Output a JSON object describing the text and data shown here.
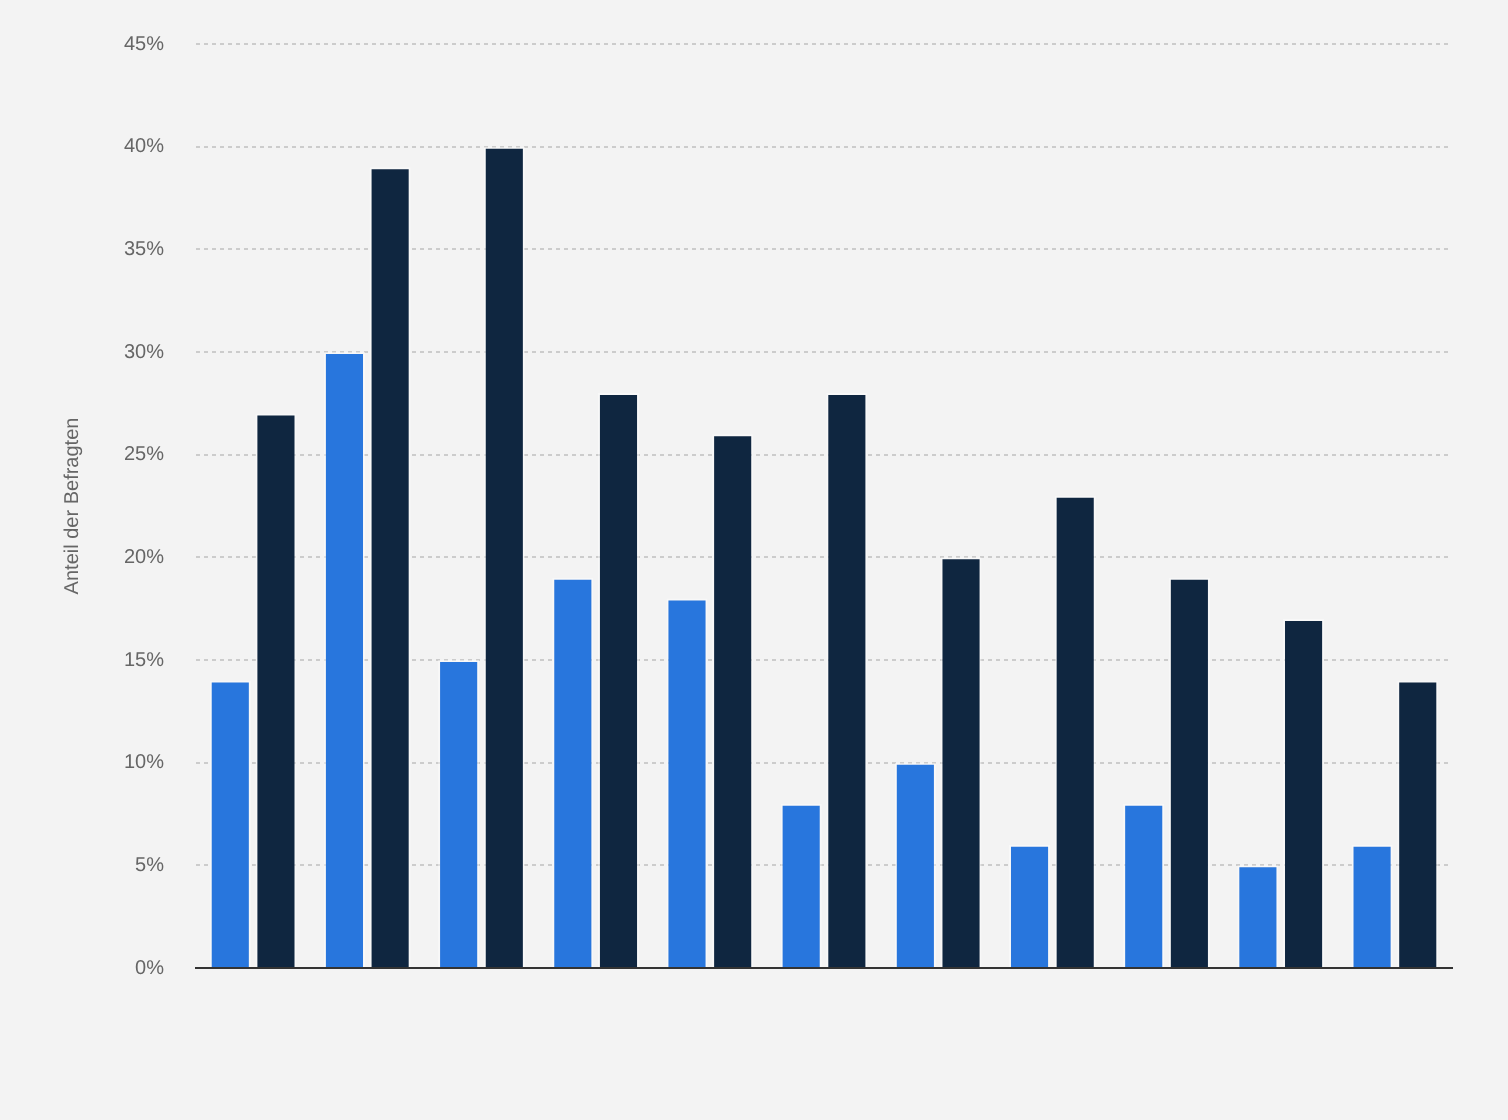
{
  "chart_data": {
    "type": "bar",
    "ylabel": "Anteil der Befragten",
    "categories": [
      null,
      null,
      null,
      null,
      null,
      null,
      null,
      null,
      null,
      null,
      null
    ],
    "series": [
      {
        "color": "#2876dd",
        "values": [
          14,
          30,
          15,
          19,
          18,
          8,
          10,
          6,
          8,
          5,
          6
        ]
      },
      {
        "color": "#0f2640",
        "values": [
          27,
          39,
          40,
          28,
          26,
          28,
          20,
          23,
          19,
          17,
          14
        ]
      }
    ],
    "ylim": [
      0,
      45
    ],
    "yticks": [
      {
        "value": 0,
        "label": "0%"
      },
      {
        "value": 5,
        "label": "5%"
      },
      {
        "value": 10,
        "label": "10%"
      },
      {
        "value": 15,
        "label": "15%"
      },
      {
        "value": 20,
        "label": "20%"
      },
      {
        "value": 25,
        "label": "25%"
      },
      {
        "value": 30,
        "label": "30%"
      },
      {
        "value": 35,
        "label": "35%"
      },
      {
        "value": 40,
        "label": "40%"
      },
      {
        "value": 45,
        "label": "45%"
      }
    ],
    "grid": "y",
    "tick_labels": "y"
  }
}
